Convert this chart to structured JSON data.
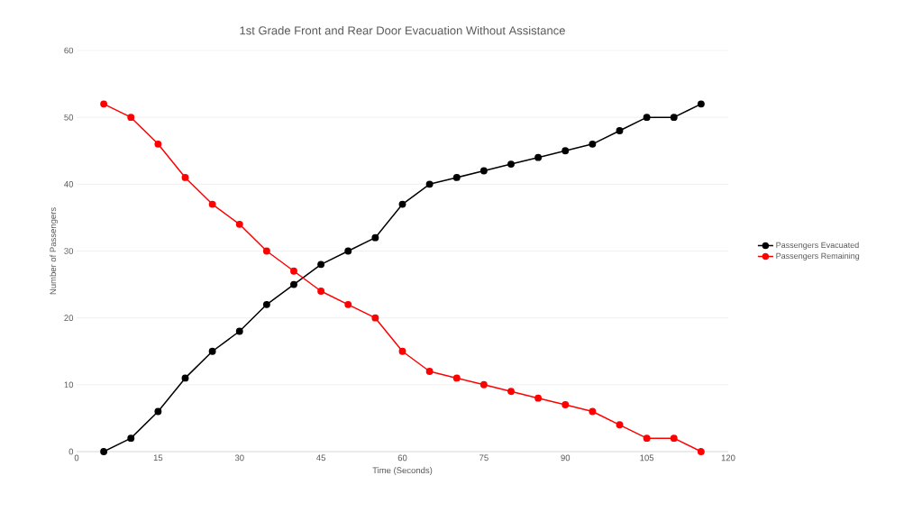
{
  "chart_data": {
    "type": "line",
    "title": "1st Grade Front and Rear Door Evacuation Without Assistance",
    "xlabel": "Time (Seconds)",
    "ylabel": "Number of Passengers",
    "x": [
      5,
      10,
      15,
      20,
      25,
      30,
      35,
      40,
      45,
      50,
      55,
      60,
      65,
      70,
      75,
      80,
      85,
      90,
      95,
      100,
      105,
      110,
      115
    ],
    "series": [
      {
        "name": "Passengers Evacuated",
        "color": "#000000",
        "values": [
          0,
          2,
          6,
          11,
          15,
          18,
          22,
          25,
          28,
          30,
          32,
          37,
          40,
          41,
          42,
          43,
          44,
          45,
          46,
          48,
          50,
          50,
          52
        ]
      },
      {
        "name": "Passengers Remaining",
        "color": "#ff0000",
        "values": [
          52,
          50,
          46,
          41,
          37,
          34,
          30,
          27,
          24,
          22,
          20,
          15,
          12,
          11,
          10,
          9,
          8,
          7,
          6,
          4,
          2,
          2,
          0
        ]
      }
    ],
    "xlim": [
      0,
      120
    ],
    "xticks": [
      0,
      15,
      30,
      45,
      60,
      75,
      90,
      105,
      120
    ],
    "ylim": [
      0,
      60
    ],
    "yticks": [
      0,
      10,
      20,
      30,
      40,
      50,
      60
    ],
    "grid": "y",
    "legend": "right",
    "marker": "circle",
    "line_style": "solid"
  }
}
